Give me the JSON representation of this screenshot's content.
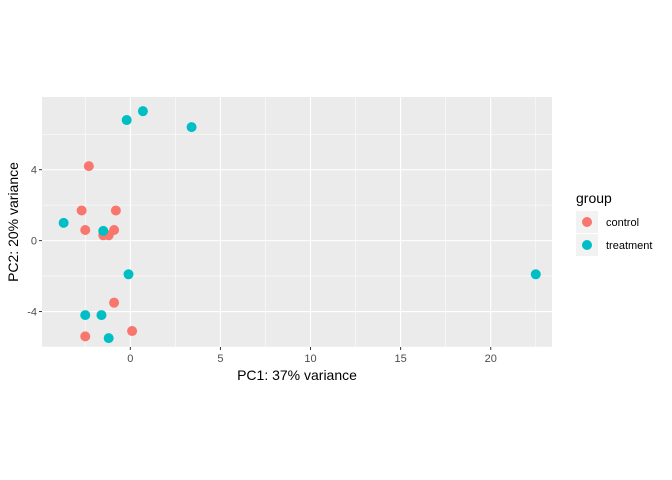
{
  "chart_data": {
    "type": "scatter",
    "xlabel": "PC1: 37% variance",
    "ylabel": "PC2: 20% variance",
    "xlim": [
      -4.9,
      23.4
    ],
    "ylim": [
      -6.0,
      8.1
    ],
    "xticks": [
      0,
      5,
      10,
      15,
      20
    ],
    "yticks": [
      -4,
      0,
      4
    ],
    "grid": true,
    "legend": {
      "title": "group",
      "position": "right",
      "entries": [
        {
          "name": "control",
          "color": "#F8766D"
        },
        {
          "name": "treatment",
          "color": "#00BFC4"
        }
      ]
    },
    "series": [
      {
        "name": "control",
        "color": "#F8766D",
        "points": [
          [
            -2.3,
            4.2
          ],
          [
            -2.7,
            1.7
          ],
          [
            -0.8,
            1.7
          ],
          [
            -2.5,
            0.6
          ],
          [
            -0.9,
            0.6
          ],
          [
            -1.5,
            0.3
          ],
          [
            -1.2,
            0.3
          ],
          [
            -0.9,
            -3.5
          ],
          [
            0.1,
            -5.1
          ],
          [
            -2.5,
            -5.4
          ]
        ]
      },
      {
        "name": "treatment",
        "color": "#00BFC4",
        "points": [
          [
            0.7,
            7.3
          ],
          [
            -0.2,
            6.8
          ],
          [
            3.4,
            6.4
          ],
          [
            -3.7,
            1.0
          ],
          [
            -1.5,
            0.55
          ],
          [
            -0.1,
            -1.9
          ],
          [
            22.5,
            -1.9
          ],
          [
            -2.5,
            -4.2
          ],
          [
            -1.6,
            -4.2
          ],
          [
            -1.2,
            -5.5
          ]
        ]
      }
    ]
  }
}
